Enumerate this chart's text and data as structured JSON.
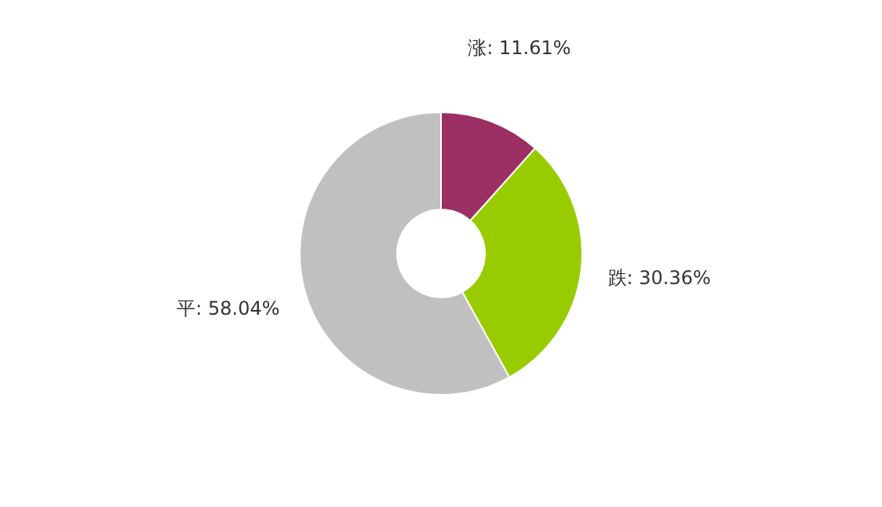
{
  "chart_data": {
    "type": "donut",
    "categories": [
      "涨",
      "跌",
      "平"
    ],
    "values": [
      11.61,
      30.36,
      58.04
    ],
    "colors": [
      "#9c3064",
      "#99cc00",
      "#c0c0c0"
    ],
    "value_labels": [
      "11.61%",
      "30.36%",
      "58.04%"
    ]
  }
}
